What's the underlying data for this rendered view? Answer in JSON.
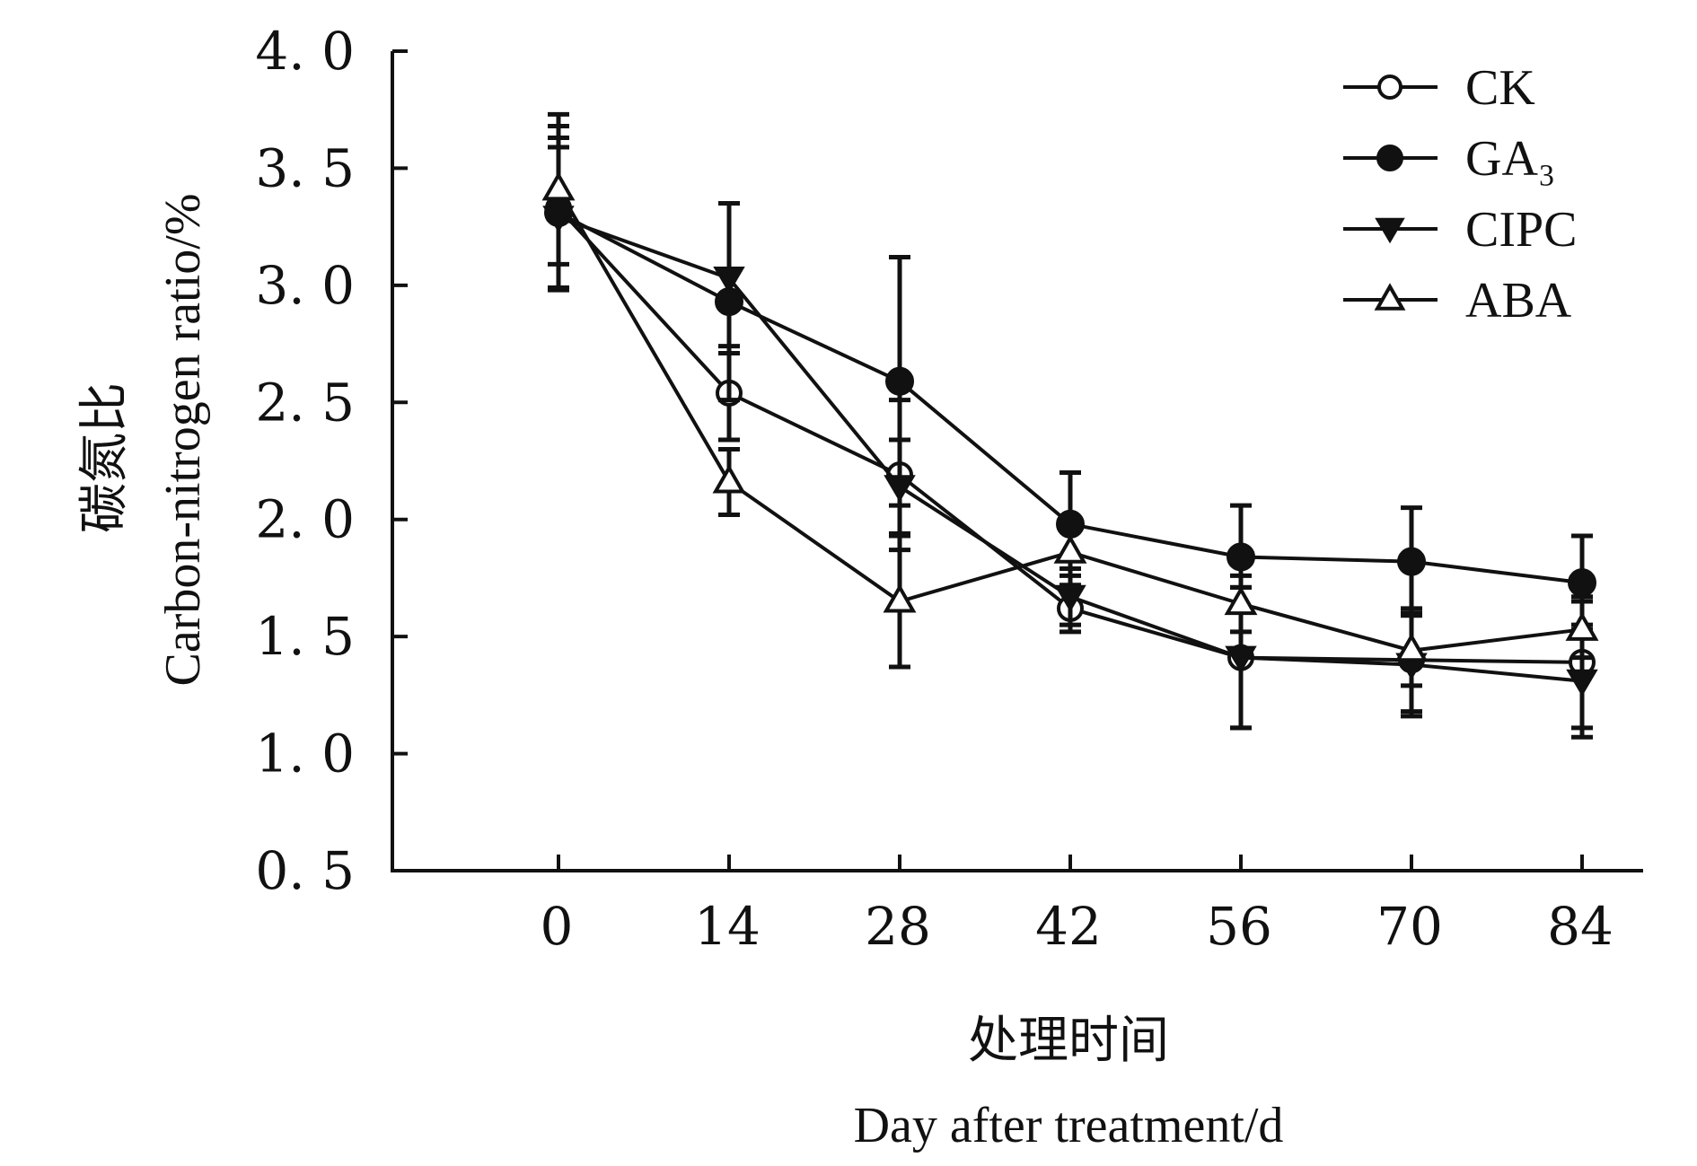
{
  "chart_data": {
    "type": "line",
    "title": "",
    "xlabel_cn": "处理时间",
    "xlabel_en": "Day after treatment/d",
    "ylabel_cn": "碳氮比",
    "ylabel_en": "Carbon-nitrogen ratio/%",
    "x": [
      0,
      14,
      28,
      42,
      56,
      70,
      84
    ],
    "x_tick_labels": [
      "0",
      "14",
      "28",
      "42",
      "56",
      "70",
      "84"
    ],
    "y_ticks": [
      0.5,
      1.0,
      1.5,
      2.0,
      2.5,
      3.0,
      3.5,
      4.0
    ],
    "y_tick_labels": [
      "0. 5",
      "1. 0",
      "1. 5",
      "2. 0",
      "2. 5",
      "3. 0",
      "3. 5",
      "4. 0"
    ],
    "ylim": [
      0.5,
      4.0
    ],
    "grid": false,
    "legend_position": "top-right",
    "series": [
      {
        "name": "CK",
        "marker": "open-circle",
        "values": [
          3.33,
          2.54,
          2.19,
          1.62,
          1.41,
          1.4,
          1.39
        ],
        "errors": [
          0.35,
          0.2,
          0.32,
          0.1,
          0.3,
          0.22,
          0.28
        ]
      },
      {
        "name": "GA₃",
        "marker": "filled-circle",
        "values": [
          3.31,
          2.93,
          2.59,
          1.98,
          1.84,
          1.82,
          1.73
        ],
        "errors": [
          0.32,
          0.42,
          0.53,
          0.22,
          0.22,
          0.23,
          0.2
        ]
      },
      {
        "name": "CIPC",
        "marker": "filled-triangle-down",
        "values": [
          3.29,
          3.03,
          2.14,
          1.67,
          1.41,
          1.38,
          1.31
        ],
        "errors": [
          0.3,
          0.32,
          0.2,
          0.12,
          0.3,
          0.22,
          0.24
        ]
      },
      {
        "name": "ABA",
        "marker": "open-triangle-up",
        "values": [
          3.41,
          2.16,
          1.65,
          1.86,
          1.64,
          1.44,
          1.53
        ],
        "errors": [
          0.32,
          0.14,
          0.28,
          0.15,
          0.12,
          0.15,
          0.12
        ]
      }
    ]
  }
}
